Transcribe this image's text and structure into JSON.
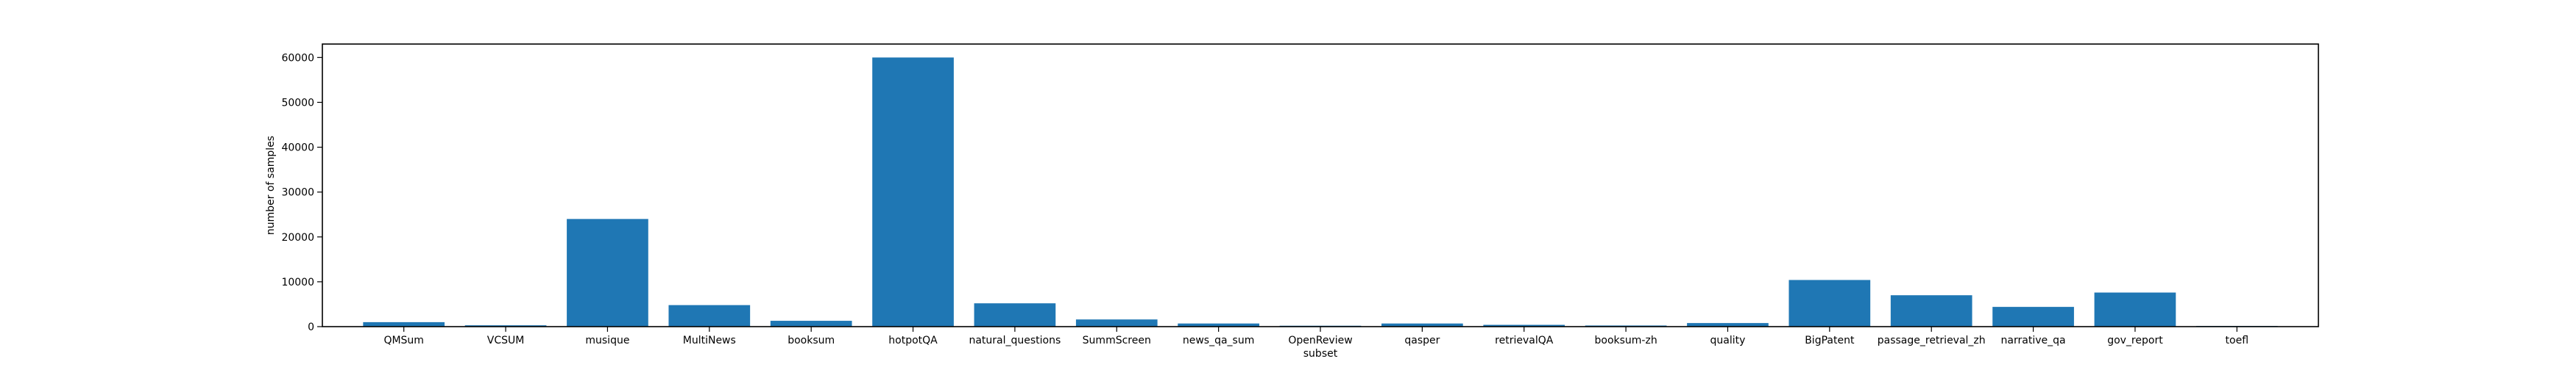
{
  "chart_data": {
    "type": "bar",
    "xlabel": "subset",
    "ylabel": "number of samples",
    "ylim": [
      0,
      63000
    ],
    "yticks": [
      0,
      10000,
      20000,
      30000,
      40000,
      50000,
      60000
    ],
    "grid": false,
    "bar_color": "#1f77b4",
    "categories": [
      "QMSum",
      "VCSUM",
      "musique",
      "MultiNews",
      "booksum",
      "hotpotQA",
      "natural_questions",
      "SummScreen",
      "news_qa_sum",
      "OpenReview",
      "qasper",
      "retrievalQA",
      "booksum-zh",
      "quality",
      "BigPatent",
      "passage_retrieval_zh",
      "narrative_qa",
      "gov_report",
      "toefl"
    ],
    "values": [
      1000,
      300,
      24000,
      4800,
      1300,
      60000,
      5200,
      1600,
      700,
      200,
      700,
      400,
      250,
      800,
      10400,
      7000,
      4400,
      7600,
      150
    ]
  }
}
